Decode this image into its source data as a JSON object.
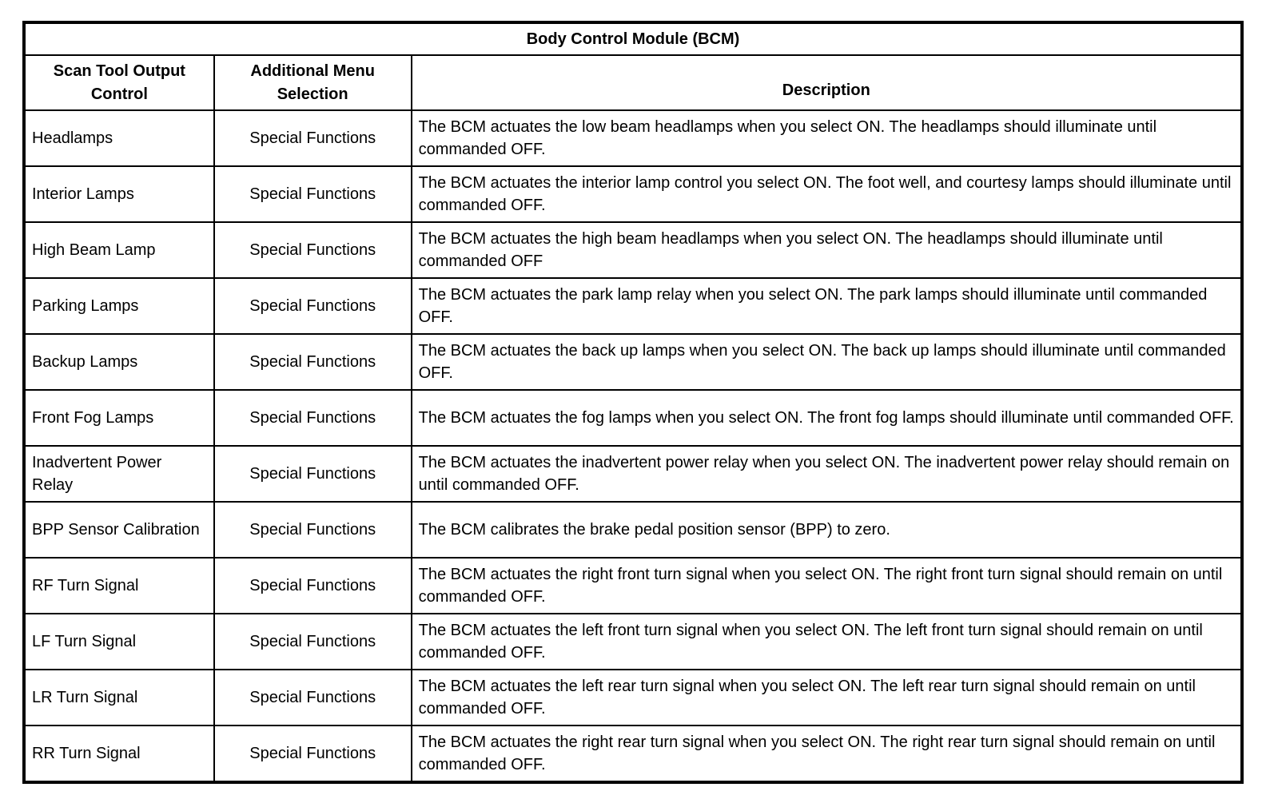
{
  "title": "Body Control Module (BCM)",
  "table": {
    "headers": [
      "Scan Tool Output Control",
      "Additional Menu Selection",
      "Description"
    ],
    "rows": [
      {
        "control": "Headlamps",
        "menu": "Special Functions",
        "description": "The BCM actuates the low beam headlamps when you select ON. The headlamps should illuminate until commanded OFF."
      },
      {
        "control": "Interior Lamps",
        "menu": "Special Functions",
        "description": "The BCM actuates the interior lamp control you select ON. The foot well, and courtesy lamps should illuminate until commanded OFF."
      },
      {
        "control": "High Beam Lamp",
        "menu": "Special Functions",
        "description": "The BCM actuates the high beam headlamps when you select ON. The headlamps should illuminate until commanded OFF"
      },
      {
        "control": "Parking Lamps",
        "menu": "Special Functions",
        "description": "The BCM actuates the park lamp relay when you select ON. The park lamps should illuminate until commanded OFF."
      },
      {
        "control": "Backup Lamps",
        "menu": "Special Functions",
        "description": "The BCM actuates the back up lamps when you select ON. The back up lamps should illuminate until commanded OFF."
      },
      {
        "control": "Front Fog Lamps",
        "menu": "Special Functions",
        "description": "The BCM actuates the fog lamps when you select ON. The front fog lamps should illuminate until commanded OFF."
      },
      {
        "control": "Inadvertent Power Relay",
        "menu": "Special Functions",
        "description": "The BCM actuates the inadvertent power relay when you select ON. The inadvertent power relay should remain on until commanded OFF."
      },
      {
        "control": "BPP Sensor Calibration",
        "menu": "Special Functions",
        "description": "The BCM calibrates the brake pedal position sensor (BPP) to zero."
      },
      {
        "control": "RF Turn Signal",
        "menu": "Special Functions",
        "description": "The BCM actuates the right front turn signal when you select ON. The right front turn signal should remain on until commanded OFF."
      },
      {
        "control": "LF Turn Signal",
        "menu": "Special Functions",
        "description": "The BCM actuates the left front turn signal when you select ON. The left front turn signal should remain on until commanded OFF."
      },
      {
        "control": "LR Turn Signal",
        "menu": "Special Functions",
        "description": "The BCM actuates the left rear turn signal when you select ON. The left rear turn signal should remain on until commanded OFF."
      },
      {
        "control": "RR Turn Signal",
        "menu": "Special Functions",
        "description": "The BCM actuates the right rear turn signal when you select ON. The right rear turn signal should remain on until commanded OFF."
      }
    ]
  }
}
